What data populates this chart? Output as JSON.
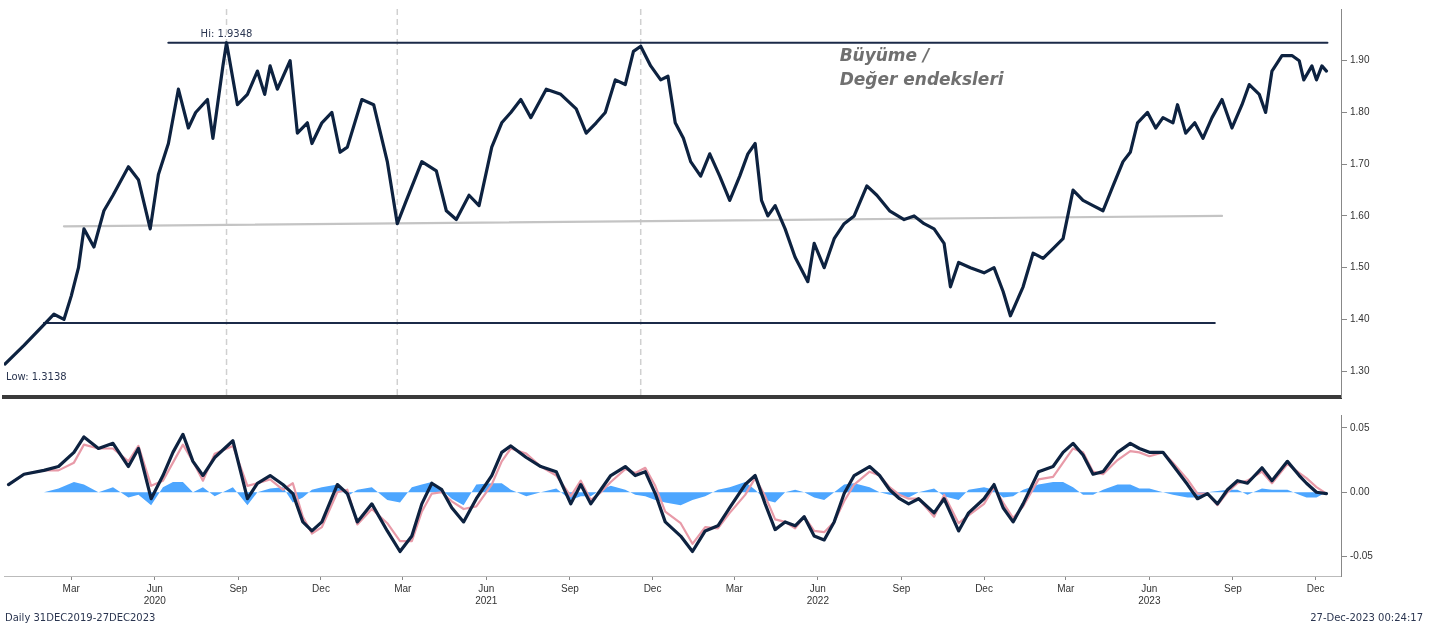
{
  "chart_data": [
    {
      "type": "line",
      "title": "Büyüme / Değer endeksleri",
      "tick_labels": "y",
      "grid": false,
      "legend": false,
      "marker": "none",
      "xlim": [
        "2020-01-01",
        "2024-01-12"
      ],
      "ylim": [
        1.25,
        2.0
      ],
      "yticks": [
        {
          "value": 1.3,
          "label": "1.30"
        },
        {
          "value": 1.4,
          "label": "1.40"
        },
        {
          "value": 1.5,
          "label": "1.50"
        },
        {
          "value": 1.6,
          "label": "1.60"
        },
        {
          "value": 1.7,
          "label": "1.70"
        },
        {
          "value": 1.8,
          "label": "1.80"
        },
        {
          "value": 1.9,
          "label": "1.90"
        }
      ],
      "ref_lines": [
        {
          "axis": "x",
          "value": "2020-09-02",
          "color": "#d0d0d0",
          "line_style": "dashed"
        },
        {
          "axis": "x",
          "value": "2021-03-09",
          "color": "#d0d0d0",
          "line_style": "dashed"
        },
        {
          "axis": "x",
          "value": "2021-12-02",
          "color": "#d0d0d0",
          "line_style": "dashed"
        }
      ],
      "annotations": [
        {
          "text": "Hi: 1.9348",
          "x": "2020-09-02",
          "y": 1.9348
        },
        {
          "text": "Low: 1.3138",
          "x": "2020-01-02",
          "y": 1.3138
        }
      ],
      "series": [
        {
          "color": "#0d2240",
          "x": [
            "2020-01-02",
            "2020-01-23",
            "2020-02-14",
            "2020-02-25",
            "2020-03-07",
            "2020-03-15",
            "2020-03-23",
            "2020-03-29",
            "2020-04-09",
            "2020-04-20",
            "2020-04-30",
            "2020-05-17",
            "2020-05-28",
            "2020-06-10",
            "2020-06-19",
            "2020-06-30",
            "2020-07-11",
            "2020-07-22",
            "2020-07-30",
            "2020-08-12",
            "2020-08-18",
            "2020-08-29",
            "2020-09-02",
            "2020-09-14",
            "2020-09-25",
            "2020-10-06",
            "2020-10-14",
            "2020-10-20",
            "2020-10-28",
            "2020-11-11",
            "2020-11-19",
            "2020-11-30",
            "2020-12-05",
            "2020-12-16",
            "2020-12-27",
            "2021-01-05",
            "2021-01-13",
            "2021-01-29",
            "2021-02-11",
            "2021-02-26",
            "2021-03-09",
            "2021-03-19",
            "2021-04-05",
            "2021-04-21",
            "2021-05-02",
            "2021-05-13",
            "2021-05-27",
            "2021-06-07",
            "2021-06-21",
            "2021-07-02",
            "2021-07-12",
            "2021-07-23",
            "2021-08-03",
            "2021-08-20",
            "2021-09-05",
            "2021-09-22",
            "2021-10-03",
            "2021-10-14",
            "2021-10-24",
            "2021-11-04",
            "2021-11-15",
            "2021-11-24",
            "2021-12-02",
            "2021-12-13",
            "2021-12-24",
            "2022-01-01",
            "2022-01-09",
            "2022-01-18",
            "2022-01-26",
            "2022-02-06",
            "2022-02-16",
            "2022-02-27",
            "2022-03-10",
            "2022-03-21",
            "2022-03-30",
            "2022-04-07",
            "2022-04-14",
            "2022-04-21",
            "2022-04-29",
            "2022-05-10",
            "2022-05-21",
            "2022-06-04",
            "2022-06-11",
            "2022-06-22",
            "2022-07-03",
            "2022-07-14",
            "2022-07-25",
            "2022-08-08",
            "2022-08-19",
            "2022-09-02",
            "2022-09-18",
            "2022-09-29",
            "2022-10-10",
            "2022-10-21",
            "2022-11-01",
            "2022-11-08",
            "2022-11-17",
            "2022-11-30",
            "2022-12-15",
            "2022-12-26",
            "2023-01-05",
            "2023-01-13",
            "2023-01-27",
            "2023-02-07",
            "2023-02-18",
            "2023-03-01",
            "2023-03-12",
            "2023-03-23",
            "2023-04-03",
            "2023-04-14",
            "2023-04-25",
            "2023-05-06",
            "2023-05-17",
            "2023-05-25",
            "2023-06-02",
            "2023-06-13",
            "2023-06-22",
            "2023-06-30",
            "2023-07-11",
            "2023-07-16",
            "2023-07-25",
            "2023-08-04",
            "2023-08-13",
            "2023-08-23",
            "2023-09-03",
            "2023-09-14",
            "2023-09-25",
            "2023-10-03",
            "2023-10-14",
            "2023-10-21",
            "2023-10-28",
            "2023-11-08",
            "2023-11-19",
            "2023-11-27",
            "2023-12-02",
            "2023-12-11",
            "2023-12-16",
            "2023-12-22",
            "2023-12-27"
          ],
          "values": [
            1.3138,
            1.35,
            1.39,
            1.41,
            1.4,
            1.445,
            1.5,
            1.575,
            1.54,
            1.61,
            1.64,
            1.695,
            1.67,
            1.575,
            1.68,
            1.74,
            1.845,
            1.77,
            1.8,
            1.825,
            1.75,
            1.89,
            1.9348,
            1.815,
            1.835,
            1.88,
            1.835,
            1.89,
            1.845,
            1.9,
            1.76,
            1.78,
            1.74,
            1.78,
            1.8,
            1.723,
            1.733,
            1.825,
            1.815,
            1.705,
            1.585,
            1.63,
            1.705,
            1.687,
            1.61,
            1.593,
            1.64,
            1.62,
            1.733,
            1.78,
            1.8,
            1.825,
            1.79,
            1.845,
            1.835,
            1.807,
            1.76,
            1.78,
            1.8,
            1.863,
            1.854,
            1.918,
            1.928,
            1.89,
            1.863,
            1.87,
            1.78,
            1.75,
            1.705,
            1.677,
            1.72,
            1.677,
            1.63,
            1.677,
            1.72,
            1.74,
            1.63,
            1.6,
            1.62,
            1.575,
            1.52,
            1.473,
            1.547,
            1.5,
            1.556,
            1.585,
            1.6,
            1.658,
            1.64,
            1.61,
            1.593,
            1.6,
            1.585,
            1.575,
            1.547,
            1.463,
            1.51,
            1.5,
            1.49,
            1.5,
            1.454,
            1.407,
            1.463,
            1.528,
            1.518,
            1.537,
            1.556,
            1.65,
            1.63,
            1.62,
            1.61,
            1.658,
            1.705,
            1.723,
            1.78,
            1.8,
            1.77,
            1.79,
            1.78,
            1.815,
            1.76,
            1.78,
            1.75,
            1.79,
            1.825,
            1.77,
            1.815,
            1.854,
            1.835,
            1.8,
            1.88,
            1.91,
            1.91,
            1.9,
            1.863,
            1.89,
            1.863,
            1.89,
            1.88
          ]
        },
        {
          "type": "line",
          "color": "#1b2a48",
          "x": [
            "2020-06-30",
            "2023-12-28"
          ],
          "values": [
            1.9348,
            1.9348
          ]
        },
        {
          "type": "line",
          "color": "#c4c4c4",
          "x": [
            "2020-03-07",
            "2023-09-03"
          ],
          "values": [
            1.58,
            1.6
          ]
        },
        {
          "type": "line",
          "color": "#1b2a48",
          "x": [
            "2020-02-14",
            "2023-08-26"
          ],
          "values": [
            1.393,
            1.393
          ]
        }
      ]
    },
    {
      "type": "line",
      "grid": false,
      "legend": false,
      "marker": "none",
      "xlim": [
        "2020-01-01",
        "2024-01-12"
      ],
      "ylim": [
        -0.065,
        0.06
      ],
      "yticks": [
        {
          "value": -0.05,
          "label": "-0.05"
        },
        {
          "value": 0,
          "label": "0.00"
        },
        {
          "value": 0.05,
          "label": "0.05"
        }
      ],
      "xticks": [
        {
          "value": "2020-03-15",
          "label": "Mar"
        },
        {
          "value": "2020-06-15",
          "label": "Jun\n2020"
        },
        {
          "value": "2020-09-15",
          "label": "Sep"
        },
        {
          "value": "2020-12-15",
          "label": "Dec"
        },
        {
          "value": "2021-03-15",
          "label": "Mar"
        },
        {
          "value": "2021-06-15",
          "label": "Jun\n2021"
        },
        {
          "value": "2021-09-15",
          "label": "Sep"
        },
        {
          "value": "2021-12-15",
          "label": "Dec"
        },
        {
          "value": "2022-03-15",
          "label": "Mar"
        },
        {
          "value": "2022-06-15",
          "label": "Jun\n2022"
        },
        {
          "value": "2022-09-15",
          "label": "Sep"
        },
        {
          "value": "2022-12-15",
          "label": "Dec"
        },
        {
          "value": "2023-03-15",
          "label": "Mar"
        },
        {
          "value": "2023-06-15",
          "label": "Jun\n2023"
        },
        {
          "value": "2023-09-15",
          "label": "Sep"
        },
        {
          "value": "2023-12-15",
          "label": "Dec"
        }
      ],
      "annotations": [
        "Daily 31DEC2019-27DEC2023",
        "27-Dec-2023 00:24:17"
      ],
      "x": [
        "2020-01-06",
        "2020-01-23",
        "2020-02-14",
        "2020-03-01",
        "2020-03-18",
        "2020-03-29",
        "2020-04-14",
        "2020-04-30",
        "2020-05-17",
        "2020-05-28",
        "2020-06-11",
        "2020-06-24",
        "2020-07-05",
        "2020-07-16",
        "2020-07-27",
        "2020-08-07",
        "2020-08-20",
        "2020-09-09",
        "2020-09-25",
        "2020-10-06",
        "2020-10-20",
        "2020-11-03",
        "2020-11-14",
        "2020-11-25",
        "2020-12-05",
        "2020-12-16",
        "2021-01-02",
        "2021-01-13",
        "2021-01-24",
        "2021-02-09",
        "2021-02-26",
        "2021-03-12",
        "2021-03-25",
        "2021-04-05",
        "2021-04-16",
        "2021-04-27",
        "2021-05-08",
        "2021-05-21",
        "2021-06-04",
        "2021-06-21",
        "2021-07-02",
        "2021-07-12",
        "2021-07-29",
        "2021-08-14",
        "2021-08-31",
        "2021-09-16",
        "2021-09-27",
        "2021-10-08",
        "2021-10-19",
        "2021-10-30",
        "2021-11-15",
        "2021-11-26",
        "2021-12-07",
        "2021-12-18",
        "2021-12-29",
        "2022-01-15",
        "2022-01-28",
        "2022-02-11",
        "2022-02-25",
        "2022-03-10",
        "2022-03-27",
        "2022-04-07",
        "2022-04-18",
        "2022-04-29",
        "2022-05-10",
        "2022-05-21",
        "2022-05-31",
        "2022-06-11",
        "2022-06-22",
        "2022-07-03",
        "2022-07-14",
        "2022-07-25",
        "2022-08-11",
        "2022-08-22",
        "2022-09-02",
        "2022-09-13",
        "2022-09-23",
        "2022-10-04",
        "2022-10-21",
        "2022-11-01",
        "2022-11-17",
        "2022-11-28",
        "2022-12-15",
        "2022-12-26",
        "2023-01-05",
        "2023-01-16",
        "2023-01-27",
        "2023-02-13",
        "2023-03-01",
        "2023-03-12",
        "2023-03-23",
        "2023-04-03",
        "2023-04-14",
        "2023-04-25",
        "2023-05-11",
        "2023-05-25",
        "2023-06-04",
        "2023-06-15",
        "2023-06-30",
        "2023-07-11",
        "2023-07-27",
        "2023-08-07",
        "2023-08-18",
        "2023-08-29",
        "2023-09-09",
        "2023-09-20",
        "2023-10-01",
        "2023-10-17",
        "2023-10-28",
        "2023-11-14",
        "2023-11-27",
        "2023-12-05",
        "2023-12-16",
        "2023-12-27"
      ],
      "series": [
        {
          "color": "#0d2240",
          "values": [
            0.006,
            0.014,
            0.017,
            0.02,
            0.031,
            0.043,
            0.034,
            0.038,
            0.02,
            0.034,
            -0.005,
            0.013,
            0.031,
            0.045,
            0.024,
            0.013,
            0.027,
            0.04,
            -0.005,
            0.007,
            0.013,
            0.006,
            -0.001,
            -0.023,
            -0.03,
            -0.023,
            0.006,
            -0.001,
            -0.023,
            -0.009,
            -0.03,
            -0.046,
            -0.034,
            -0.009,
            0.007,
            0.002,
            -0.012,
            -0.023,
            -0.005,
            0.013,
            0.031,
            0.036,
            0.027,
            0.02,
            0.016,
            -0.009,
            0.006,
            -0.009,
            0.002,
            0.013,
            0.02,
            0.013,
            0.016,
            -0.001,
            -0.023,
            -0.034,
            -0.046,
            -0.03,
            -0.026,
            -0.012,
            0.006,
            0.013,
            -0.009,
            -0.029,
            -0.023,
            -0.026,
            -0.019,
            -0.034,
            -0.037,
            -0.023,
            -0.001,
            0.013,
            0.02,
            0.013,
            0.002,
            -0.005,
            -0.009,
            -0.005,
            -0.016,
            -0.005,
            -0.03,
            -0.016,
            -0.005,
            0.006,
            -0.012,
            -0.023,
            -0.009,
            0.016,
            0.02,
            0.031,
            0.038,
            0.029,
            0.014,
            0.016,
            0.031,
            0.038,
            0.034,
            0.031,
            0.031,
            0.021,
            0.006,
            -0.005,
            -0.001,
            -0.009,
            0.002,
            0.009,
            0.007,
            0.019,
            0.009,
            0.024,
            0.013,
            0.007,
            0.0,
            -0.001
          ]
        },
        {
          "color": "#e89aa8",
          "values": [
            0.006,
            0.014,
            0.017,
            0.017,
            0.023,
            0.037,
            0.034,
            0.034,
            0.024,
            0.036,
            0.005,
            0.009,
            0.023,
            0.037,
            0.024,
            0.009,
            0.03,
            0.036,
            0.005,
            0.007,
            0.01,
            0.002,
            0.007,
            -0.019,
            -0.032,
            -0.027,
            0.0,
            0.002,
            -0.025,
            -0.013,
            -0.024,
            -0.038,
            -0.038,
            -0.015,
            -0.001,
            0.0,
            -0.007,
            -0.013,
            -0.011,
            0.006,
            0.024,
            0.034,
            0.03,
            0.02,
            0.013,
            -0.003,
            0.009,
            -0.006,
            0.0,
            0.008,
            0.018,
            0.015,
            0.019,
            0.005,
            -0.015,
            -0.024,
            -0.04,
            -0.027,
            -0.028,
            -0.016,
            -0.002,
            0.011,
            -0.003,
            -0.021,
            -0.023,
            -0.028,
            -0.019,
            -0.03,
            -0.031,
            -0.023,
            -0.007,
            0.006,
            0.016,
            0.013,
            0.004,
            -0.002,
            -0.005,
            -0.005,
            -0.019,
            -0.002,
            -0.024,
            -0.018,
            -0.009,
            0.004,
            -0.008,
            -0.02,
            -0.011,
            0.01,
            0.012,
            0.023,
            0.034,
            0.031,
            0.016,
            0.014,
            0.025,
            0.032,
            0.031,
            0.028,
            0.031,
            0.023,
            0.01,
            -0.001,
            -0.001,
            -0.01,
            0.0,
            0.007,
            0.009,
            0.016,
            0.007,
            0.022,
            0.015,
            0.011,
            0.004,
            -0.001
          ]
        },
        {
          "type": "area",
          "color": "#4da6ff",
          "values": [
            0.0,
            0.0,
            0.0,
            0.003,
            0.008,
            0.006,
            0.0,
            0.004,
            -0.004,
            -0.002,
            -0.01,
            0.004,
            0.008,
            0.008,
            0.0,
            0.004,
            -0.003,
            0.004,
            -0.01,
            0.0,
            0.003,
            0.004,
            -0.008,
            -0.004,
            0.002,
            0.004,
            0.006,
            -0.003,
            0.002,
            0.004,
            -0.006,
            -0.008,
            0.004,
            0.006,
            0.008,
            0.002,
            -0.005,
            -0.01,
            0.006,
            0.007,
            0.007,
            0.002,
            -0.003,
            0.0,
            0.003,
            -0.006,
            -0.003,
            -0.003,
            0.002,
            0.005,
            0.002,
            -0.002,
            -0.003,
            -0.006,
            -0.008,
            -0.01,
            -0.006,
            -0.003,
            0.002,
            0.004,
            0.008,
            0.002,
            -0.006,
            -0.008,
            0.0,
            0.002,
            0.0,
            -0.004,
            -0.006,
            0.0,
            0.006,
            0.007,
            0.004,
            0.0,
            -0.002,
            -0.003,
            -0.004,
            0.0,
            0.003,
            -0.003,
            -0.006,
            0.002,
            0.004,
            0.002,
            -0.004,
            -0.003,
            0.002,
            0.006,
            0.008,
            0.008,
            0.004,
            -0.002,
            -0.002,
            0.002,
            0.006,
            0.006,
            0.003,
            0.003,
            0.0,
            -0.002,
            -0.004,
            -0.004,
            0.0,
            0.001,
            0.002,
            0.002,
            -0.002,
            0.003,
            0.002,
            0.002,
            -0.002,
            -0.004,
            -0.004,
            0.0
          ]
        }
      ]
    }
  ]
}
